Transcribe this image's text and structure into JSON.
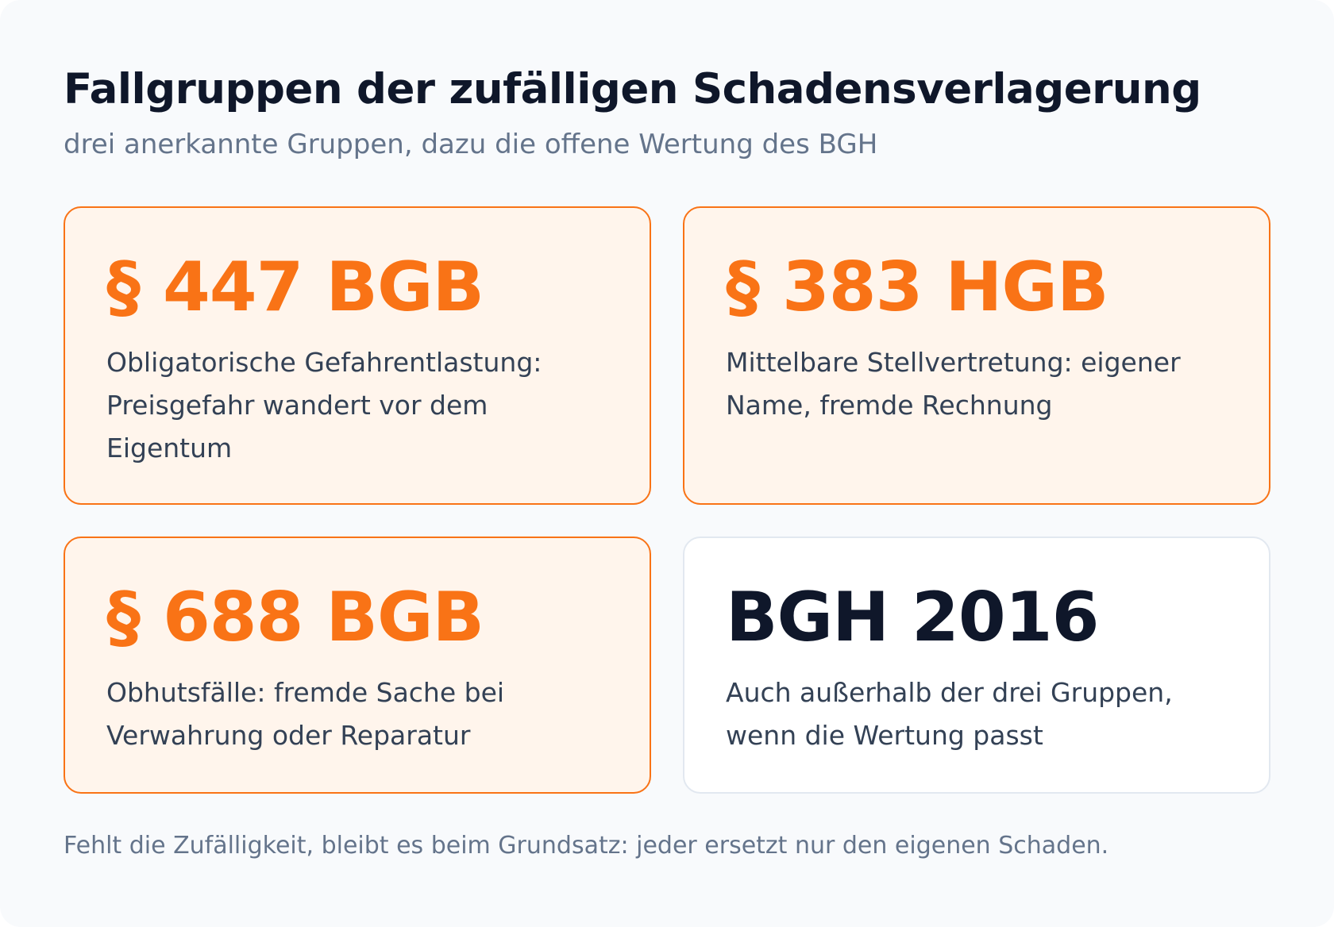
{
  "header": {
    "title": "Fallgruppen der zufälligen Schadensverlagerung",
    "subtitle": "drei anerkannte Gruppen, dazu die offene Wertung des BGH"
  },
  "cards": [
    {
      "heading": "§ 447 BGB",
      "text": "Obligatorische Gefahrentlastung: Preisgefahr wandert vor dem Eigentum",
      "style": "accent"
    },
    {
      "heading": "§ 383 HGB",
      "text": "Mittelbare Stellvertretung: eigener Name, fremde Rechnung",
      "style": "accent"
    },
    {
      "heading": "§ 688 BGB",
      "text": "Obhutsfälle: fremde Sache bei Verwahrung oder Reparatur",
      "style": "accent"
    },
    {
      "heading": "BGH 2016",
      "text": "Auch außerhalb der drei Gruppen, wenn die Wertung passt",
      "style": "plain"
    }
  ],
  "footer": {
    "note": "Fehlt die Zufälligkeit, bleibt es beim Grundsatz: jeder ersetzt nur den eigenen Schaden."
  },
  "colors": {
    "accent": "#f97316",
    "accent_background": "#fff5ec",
    "title": "#0f172a",
    "muted": "#64748b",
    "body_text": "#334155",
    "plain_border": "#e2e8f0"
  }
}
